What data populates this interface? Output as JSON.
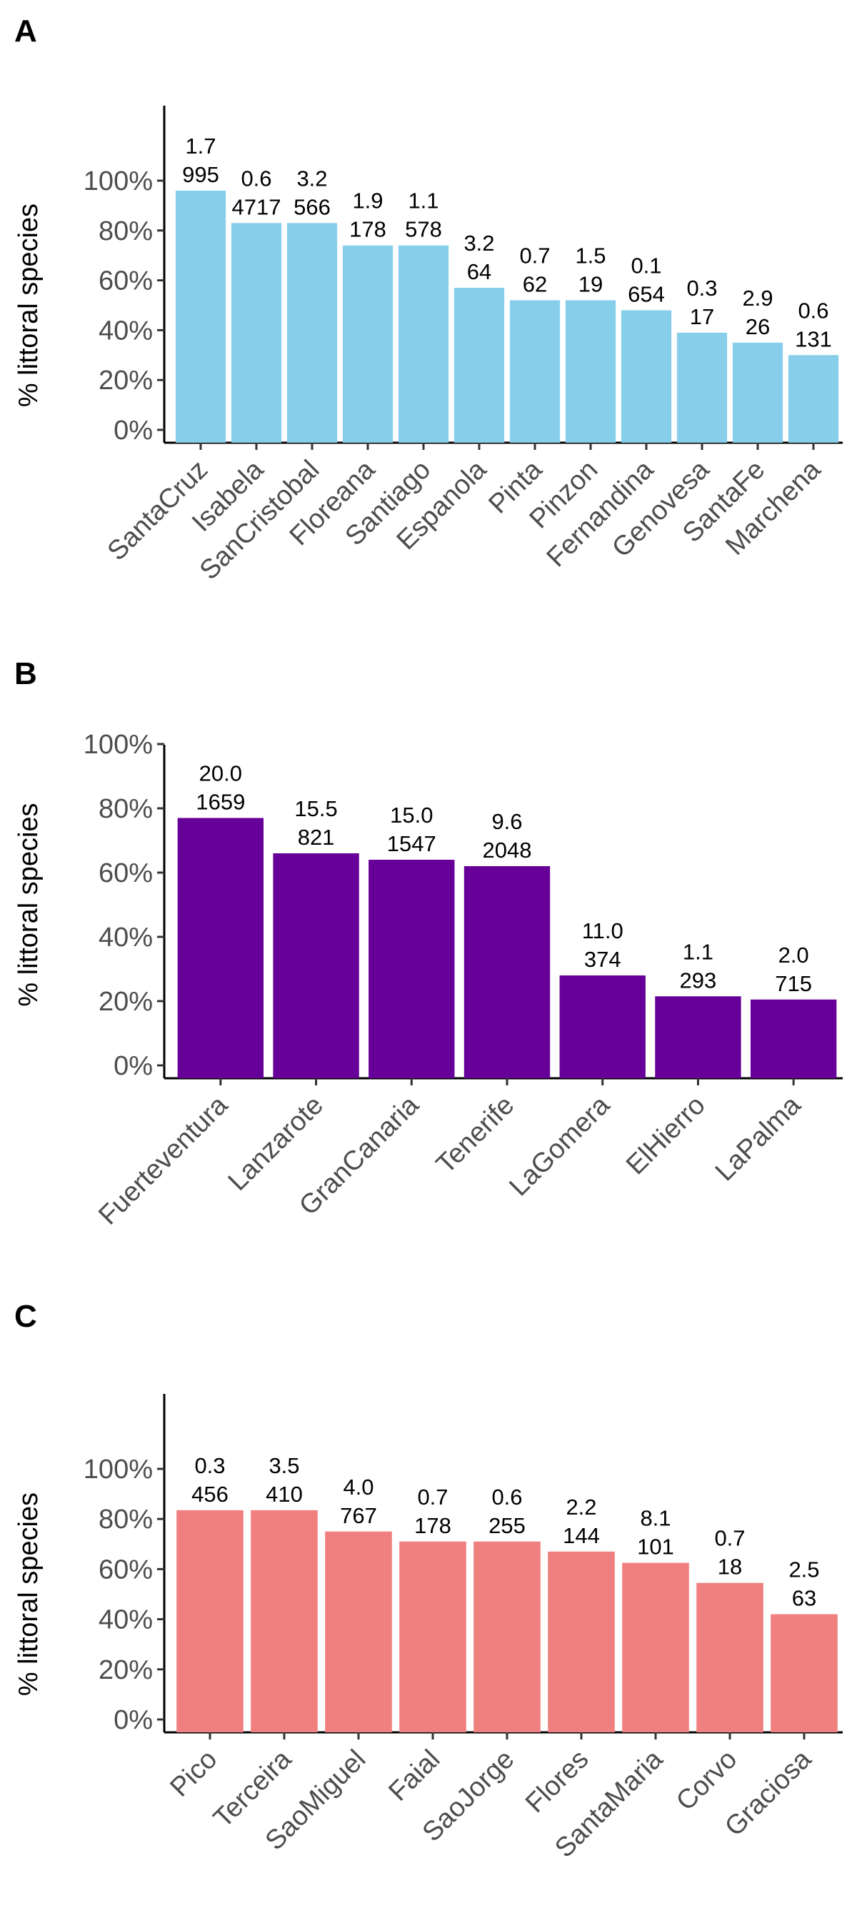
{
  "chart_data": [
    {
      "panel": "A",
      "type": "bar",
      "ylabel": "% littoral species",
      "ylim": [
        0,
        100
      ],
      "yticks": [
        "0%",
        "20%",
        "40%",
        "60%",
        "80%",
        "100%"
      ],
      "color": "#87CEEB",
      "categories": [
        "SantaCruz",
        "Isabela",
        "SanCristobal",
        "Floreana",
        "Santiago",
        "Espanola",
        "Pinta",
        "Pinzon",
        "Fernandina",
        "Genovesa",
        "SantaFe",
        "Marchena"
      ],
      "values": [
        96,
        83,
        83,
        74,
        74,
        57,
        52,
        52,
        48,
        39,
        35,
        30
      ],
      "labels_top": [
        "1.7",
        "0.6",
        "3.2",
        "1.9",
        "1.1",
        "3.2",
        "0.7",
        "1.5",
        "0.1",
        "0.3",
        "2.9",
        "0.6"
      ],
      "labels_bottom": [
        "995",
        "4717",
        "566",
        "178",
        "578",
        "64",
        "62",
        "19",
        "654",
        "17",
        "26",
        "131"
      ]
    },
    {
      "panel": "B",
      "type": "bar",
      "ylabel": "% littoral species",
      "ylim": [
        0,
        100
      ],
      "yticks": [
        "0%",
        "20%",
        "40%",
        "60%",
        "80%",
        "100%"
      ],
      "color": "#660099",
      "categories": [
        "Fuerteventura",
        "Lanzarote",
        "GranCanaria",
        "Tenerife",
        "LaGomera",
        "ElHierro",
        "LaPalma"
      ],
      "values": [
        77,
        66,
        64,
        62,
        28,
        21.5,
        20.5
      ],
      "labels_top": [
        "20.0",
        "15.5",
        "15.0",
        "9.6",
        "11.0",
        "1.1",
        "2.0"
      ],
      "labels_bottom": [
        "1659",
        "821",
        "1547",
        "2048",
        "374",
        "293",
        "715"
      ]
    },
    {
      "panel": "C",
      "type": "bar",
      "ylabel": "% littoral species",
      "ylim": [
        0,
        100
      ],
      "yticks": [
        "0%",
        "20%",
        "40%",
        "60%",
        "80%",
        "100%"
      ],
      "color": "#F08080",
      "categories": [
        "Pico",
        "Terceira",
        "SaoMiguel",
        "Faial",
        "SaoJorge",
        "Flores",
        "SantaMaria",
        "Corvo",
        "Graciosa"
      ],
      "values": [
        83.5,
        83.5,
        75,
        71,
        71,
        67,
        62.5,
        54.5,
        42
      ],
      "labels_top": [
        "0.3",
        "3.5",
        "4.0",
        "0.7",
        "0.6",
        "2.2",
        "8.1",
        "0.7",
        "2.5"
      ],
      "labels_bottom": [
        "456",
        "410",
        "767",
        "178",
        "255",
        "144",
        "101",
        "18",
        "63"
      ]
    }
  ]
}
